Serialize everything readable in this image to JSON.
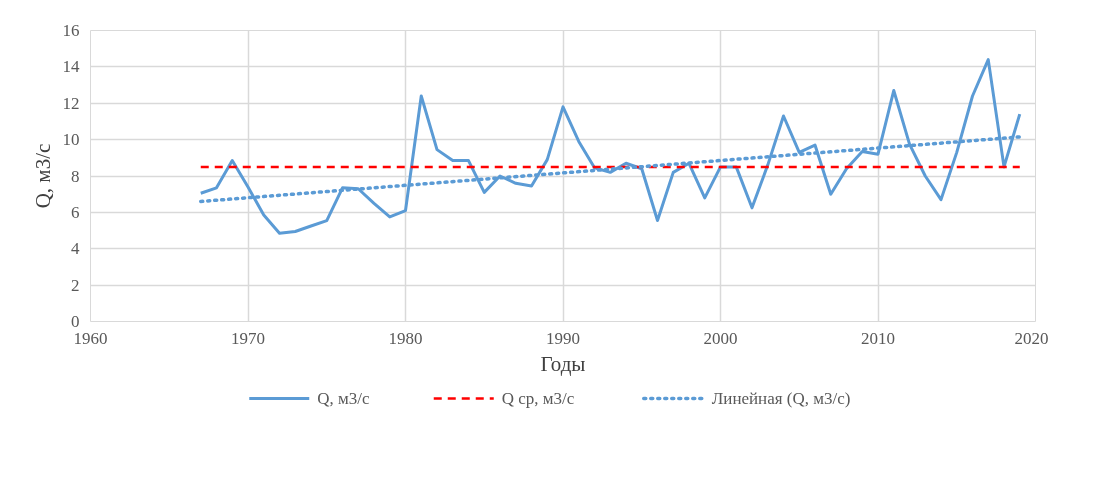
{
  "chart_data": {
    "type": "line",
    "xlabel": "Годы",
    "ylabel": "Q, м3/с",
    "xlim": [
      1960,
      2020
    ],
    "xticks": [
      1960,
      1970,
      1980,
      1990,
      2000,
      2010,
      2020
    ],
    "ylim": [
      0,
      16
    ],
    "yticks": [
      0,
      2,
      4,
      6,
      8,
      10,
      12,
      14,
      16
    ],
    "grid": true,
    "legend": "bottom",
    "marker": "none",
    "series": [
      {
        "name": "Q, м3/с",
        "color": "#5b9bd5",
        "line_style": "solid",
        "x": [
          1967,
          1968,
          1969,
          1970,
          1971,
          1972,
          1973,
          1974,
          1975,
          1976,
          1977,
          1978,
          1979,
          1980,
          1981,
          1982,
          1983,
          1984,
          1985,
          1986,
          1987,
          1988,
          1989,
          1990,
          1991,
          1992,
          1993,
          1994,
          1995,
          1996,
          1997,
          1998,
          1999,
          2000,
          2001,
          2002,
          2003,
          2004,
          2005,
          2006,
          2007,
          2008,
          2009,
          2010,
          2011,
          2012,
          2013,
          2014,
          2015,
          2016,
          2017,
          2018,
          2019
        ],
        "values": [
          7.05,
          7.35,
          8.85,
          7.4,
          5.85,
          4.85,
          4.95,
          5.25,
          5.55,
          7.35,
          7.3,
          6.5,
          5.75,
          6.1,
          12.4,
          9.45,
          8.85,
          8.85,
          7.1,
          8.0,
          7.6,
          7.45,
          8.9,
          11.8,
          9.9,
          8.45,
          8.2,
          8.7,
          8.4,
          5.55,
          8.2,
          8.7,
          6.8,
          8.5,
          8.5,
          6.25,
          8.6,
          11.3,
          9.3,
          9.7,
          7.0,
          8.4,
          9.35,
          9.2,
          12.7,
          9.75,
          8.0,
          6.7,
          9.3,
          12.4,
          14.4,
          8.5,
          11.4
        ]
      },
      {
        "name": "Q ср, м3/с",
        "color": "#ff0000",
        "line_style": "dashed",
        "x": [
          1967,
          2019
        ],
        "values": [
          8.5,
          8.5
        ]
      },
      {
        "name": "Линейная (Q, м3/с)",
        "color": "#5b9bd5",
        "line_style": "dotted",
        "x": [
          1967,
          2019
        ],
        "values": [
          6.6,
          10.15
        ]
      }
    ]
  }
}
